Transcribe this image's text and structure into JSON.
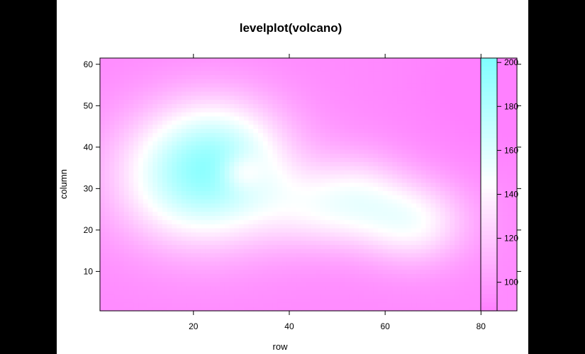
{
  "chart_data": {
    "type": "heatmap",
    "title": "levelplot(volcano)",
    "xlabel": "row",
    "ylabel": "column",
    "xlim": [
      0.5,
      87.5
    ],
    "ylim": [
      0.5,
      61.5
    ],
    "xticks": [
      20,
      40,
      60,
      80
    ],
    "yticks": [
      10,
      20,
      30,
      40,
      50,
      60
    ],
    "colorkey": {
      "range": [
        87,
        202
      ],
      "ticks": [
        100,
        120,
        140,
        160,
        180,
        200
      ],
      "colors": {
        "low": "#ff80ff",
        "mid": "#ffffff",
        "high": "#80ffff"
      }
    },
    "dims": {
      "nrow": 87,
      "ncol": 61
    },
    "features": {
      "base": 92,
      "main_peak": {
        "row": 22,
        "col": 33,
        "height": 192
      },
      "crater": {
        "row": 30,
        "col": 34,
        "value": 158
      },
      "ridge_east_end": {
        "row": 66,
        "col": 22,
        "height": 148
      }
    }
  }
}
